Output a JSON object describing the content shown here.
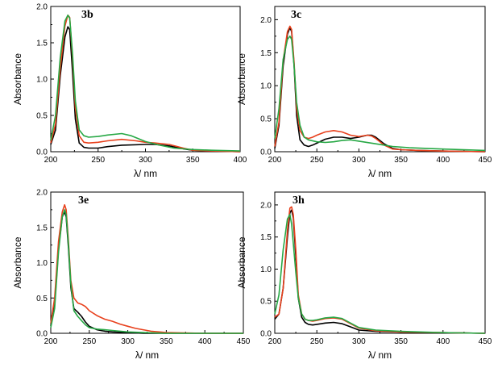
{
  "colors": {
    "black": "#000000",
    "red": "#e8401c",
    "green": "#27a845"
  },
  "chart_data": [
    {
      "type": "line",
      "title": "3b",
      "xlabel": "λ/ nm",
      "ylabel": "Absorbance",
      "xlim": [
        200,
        400
      ],
      "ylim": [
        0,
        2.0
      ],
      "xticks": [
        "200",
        "250",
        "300",
        "350",
        "400"
      ],
      "yticks": [
        "0.0",
        "0.5",
        "1.0",
        "1.5",
        "2.0"
      ],
      "series": [
        {
          "name": "black",
          "color": "#000000",
          "x": [
            200,
            205,
            210,
            215,
            218,
            220,
            223,
            226,
            230,
            235,
            240,
            250,
            260,
            275,
            300,
            310,
            325,
            340,
            350,
            370,
            400
          ],
          "y": [
            0.1,
            0.3,
            1.05,
            1.58,
            1.72,
            1.68,
            1.1,
            0.45,
            0.12,
            0.06,
            0.05,
            0.05,
            0.07,
            0.09,
            0.1,
            0.1,
            0.08,
            0.04,
            0.02,
            0.01,
            0.0
          ]
        },
        {
          "name": "red",
          "color": "#e8401c",
          "x": [
            200,
            205,
            210,
            215,
            218,
            220,
            223,
            226,
            230,
            235,
            240,
            250,
            260,
            275,
            290,
            300,
            310,
            325,
            340,
            350,
            370,
            400
          ],
          "y": [
            0.12,
            0.38,
            1.15,
            1.73,
            1.88,
            1.85,
            1.3,
            0.6,
            0.22,
            0.13,
            0.12,
            0.13,
            0.15,
            0.17,
            0.15,
            0.13,
            0.12,
            0.1,
            0.05,
            0.02,
            0.01,
            0.0
          ]
        },
        {
          "name": "green",
          "color": "#27a845",
          "x": [
            200,
            205,
            210,
            215,
            218,
            220,
            223,
            226,
            230,
            235,
            240,
            250,
            260,
            275,
            285,
            300,
            315,
            330,
            350,
            370,
            400
          ],
          "y": [
            0.16,
            0.5,
            1.3,
            1.8,
            1.88,
            1.84,
            1.35,
            0.7,
            0.3,
            0.22,
            0.2,
            0.21,
            0.23,
            0.25,
            0.22,
            0.14,
            0.09,
            0.05,
            0.03,
            0.02,
            0.01
          ]
        }
      ]
    },
    {
      "type": "line",
      "title": "3c",
      "xlabel": "λ/ nm",
      "ylabel": "Absorbance",
      "xlim": [
        200,
        450
      ],
      "ylim": [
        0,
        2.2
      ],
      "xticks": [
        "200",
        "250",
        "300",
        "350",
        "400",
        "450"
      ],
      "yticks": [
        "0.0",
        "0.5",
        "1.0",
        "1.5",
        "2.0"
      ],
      "series": [
        {
          "name": "black",
          "color": "#000000",
          "x": [
            200,
            205,
            210,
            215,
            218,
            220,
            223,
            226,
            230,
            235,
            240,
            245,
            250,
            260,
            270,
            280,
            290,
            300,
            310,
            315,
            320,
            330,
            340,
            350,
            370,
            400,
            450
          ],
          "y": [
            0.05,
            0.4,
            1.3,
            1.78,
            1.88,
            1.82,
            1.3,
            0.55,
            0.18,
            0.1,
            0.08,
            0.1,
            0.13,
            0.19,
            0.22,
            0.22,
            0.2,
            0.22,
            0.25,
            0.25,
            0.22,
            0.12,
            0.05,
            0.03,
            0.02,
            0.01,
            0.0
          ]
        },
        {
          "name": "red",
          "color": "#e8401c",
          "x": [
            200,
            205,
            210,
            215,
            218,
            220,
            223,
            226,
            230,
            235,
            240,
            245,
            250,
            260,
            270,
            280,
            290,
            300,
            310,
            315,
            320,
            330,
            340,
            350,
            370,
            400,
            450
          ],
          "y": [
            0.08,
            0.45,
            1.38,
            1.82,
            1.9,
            1.85,
            1.35,
            0.65,
            0.32,
            0.22,
            0.2,
            0.22,
            0.25,
            0.3,
            0.32,
            0.3,
            0.25,
            0.23,
            0.25,
            0.24,
            0.2,
            0.1,
            0.04,
            0.03,
            0.02,
            0.01,
            0.0
          ]
        },
        {
          "name": "green",
          "color": "#27a845",
          "x": [
            200,
            205,
            210,
            215,
            218,
            220,
            223,
            226,
            230,
            235,
            240,
            250,
            260,
            270,
            280,
            290,
            300,
            320,
            340,
            360,
            400,
            450
          ],
          "y": [
            0.2,
            0.65,
            1.4,
            1.7,
            1.75,
            1.7,
            1.3,
            0.75,
            0.4,
            0.22,
            0.18,
            0.15,
            0.14,
            0.15,
            0.17,
            0.18,
            0.16,
            0.12,
            0.08,
            0.06,
            0.04,
            0.02
          ]
        }
      ]
    },
    {
      "type": "line",
      "title": "3e",
      "xlabel": "λ/ nm",
      "ylabel": "Absorbance",
      "xlim": [
        200,
        450
      ],
      "ylim": [
        0,
        2.0
      ],
      "xticks": [
        "200",
        "250",
        "300",
        "350",
        "400",
        "450"
      ],
      "yticks": [
        "0.0",
        "0.5",
        "1.0",
        "1.5",
        "2.0"
      ],
      "series": [
        {
          "name": "black",
          "color": "#000000",
          "x": [
            200,
            205,
            210,
            215,
            218,
            220,
            223,
            226,
            230,
            235,
            240,
            245,
            250,
            260,
            270,
            280,
            300,
            320,
            350,
            400,
            450
          ],
          "y": [
            0.1,
            0.4,
            1.2,
            1.65,
            1.72,
            1.65,
            1.2,
            0.65,
            0.35,
            0.3,
            0.24,
            0.16,
            0.1,
            0.05,
            0.03,
            0.02,
            0.01,
            0.0,
            0.0,
            0.0,
            0.0
          ]
        },
        {
          "name": "red",
          "color": "#e8401c",
          "x": [
            200,
            205,
            210,
            215,
            218,
            220,
            223,
            226,
            230,
            235,
            240,
            245,
            250,
            260,
            270,
            280,
            290,
            300,
            310,
            320,
            330,
            350,
            400,
            450
          ],
          "y": [
            0.14,
            0.5,
            1.3,
            1.72,
            1.82,
            1.75,
            1.3,
            0.75,
            0.5,
            0.43,
            0.41,
            0.38,
            0.32,
            0.25,
            0.2,
            0.17,
            0.13,
            0.1,
            0.07,
            0.05,
            0.03,
            0.01,
            0.0,
            0.0
          ]
        },
        {
          "name": "green",
          "color": "#27a845",
          "x": [
            200,
            205,
            210,
            215,
            218,
            220,
            223,
            226,
            230,
            235,
            240,
            245,
            250,
            260,
            270,
            280,
            300,
            320,
            350,
            400,
            450
          ],
          "y": [
            0.08,
            0.35,
            1.15,
            1.65,
            1.75,
            1.68,
            1.25,
            0.7,
            0.32,
            0.24,
            0.18,
            0.12,
            0.08,
            0.06,
            0.05,
            0.04,
            0.02,
            0.01,
            0.0,
            0.0,
            0.0
          ]
        }
      ]
    },
    {
      "type": "line",
      "title": "3h",
      "xlabel": "λ/ nm",
      "ylabel": "Absorbance",
      "xlim": [
        200,
        450
      ],
      "ylim": [
        0,
        2.2
      ],
      "xticks": [
        "200",
        "250",
        "300",
        "350",
        "400",
        "450"
      ],
      "yticks": [
        "0.0",
        "0.5",
        "1.0",
        "1.5",
        "2.0"
      ],
      "series": [
        {
          "name": "black",
          "color": "#000000",
          "x": [
            200,
            205,
            210,
            215,
            218,
            220,
            222,
            225,
            228,
            232,
            236,
            240,
            245,
            250,
            260,
            270,
            280,
            290,
            300,
            320,
            350,
            400,
            450
          ],
          "y": [
            0.22,
            0.3,
            0.7,
            1.5,
            1.88,
            1.92,
            1.8,
            1.2,
            0.55,
            0.25,
            0.17,
            0.14,
            0.13,
            0.14,
            0.16,
            0.17,
            0.15,
            0.1,
            0.05,
            0.03,
            0.02,
            0.01,
            0.0
          ]
        },
        {
          "name": "red",
          "color": "#e8401c",
          "x": [
            200,
            205,
            210,
            215,
            218,
            220,
            222,
            225,
            228,
            232,
            236,
            240,
            245,
            250,
            260,
            270,
            280,
            290,
            300,
            320,
            350,
            400,
            450
          ],
          "y": [
            0.25,
            0.3,
            0.7,
            1.6,
            1.95,
            1.97,
            1.85,
            1.3,
            0.6,
            0.3,
            0.22,
            0.2,
            0.19,
            0.2,
            0.23,
            0.24,
            0.22,
            0.15,
            0.08,
            0.04,
            0.02,
            0.01,
            0.0
          ]
        },
        {
          "name": "green",
          "color": "#27a845",
          "x": [
            200,
            205,
            210,
            215,
            218,
            220,
            222,
            225,
            228,
            232,
            236,
            240,
            245,
            250,
            260,
            270,
            280,
            290,
            300,
            320,
            350,
            400,
            450
          ],
          "y": [
            0.3,
            0.6,
            1.3,
            1.78,
            1.85,
            1.7,
            1.4,
            0.95,
            0.55,
            0.3,
            0.22,
            0.2,
            0.2,
            0.21,
            0.24,
            0.25,
            0.23,
            0.16,
            0.09,
            0.05,
            0.03,
            0.01,
            0.0
          ]
        }
      ]
    }
  ]
}
